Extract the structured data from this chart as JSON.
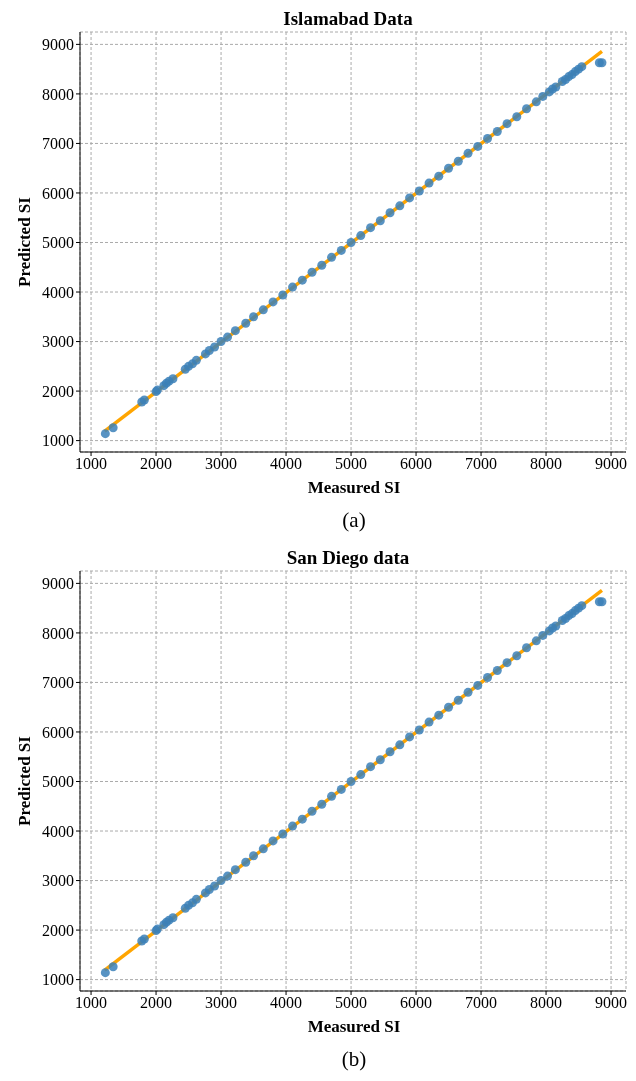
{
  "chart_data": [
    {
      "type": "scatter",
      "title": "Islamabad Data",
      "xlabel": "Measured SI",
      "ylabel": "Predicted SI",
      "annotations": [
        "(a)"
      ],
      "xlim": [
        830,
        9230
      ],
      "ylim": [
        770,
        9250
      ],
      "xticks": [
        1000,
        2000,
        3000,
        4000,
        5000,
        6000,
        7000,
        8000,
        9000
      ],
      "yticks": [
        1000,
        2000,
        3000,
        4000,
        5000,
        6000,
        7000,
        8000,
        9000
      ],
      "grid": true,
      "series": [
        {
          "marker": "circle",
          "color": "#3b80b9",
          "x": [
            1220,
            1340,
            1780,
            1820,
            2000,
            2020,
            2120,
            2160,
            2200,
            2260,
            2450,
            2500,
            2560,
            2620,
            2760,
            2820,
            2900,
            3000,
            3100,
            3220,
            3380,
            3500,
            3650,
            3800,
            3950,
            4100,
            4250,
            4400,
            4550,
            4700,
            4850,
            5000,
            5150,
            5300,
            5450,
            5600,
            5750,
            5900,
            6050,
            6200,
            6350,
            6500,
            6650,
            6800,
            6950,
            7100,
            7250,
            7400,
            7550,
            7700,
            7850,
            7950,
            8050,
            8100,
            8150,
            8250,
            8300,
            8350,
            8400,
            8450,
            8500,
            8550,
            8820,
            8860
          ],
          "values": [
            1140,
            1260,
            1780,
            1820,
            1990,
            2020,
            2110,
            2160,
            2200,
            2250,
            2440,
            2500,
            2550,
            2620,
            2750,
            2820,
            2890,
            3000,
            3090,
            3220,
            3370,
            3500,
            3640,
            3800,
            3940,
            4100,
            4240,
            4400,
            4540,
            4700,
            4840,
            5000,
            5140,
            5300,
            5440,
            5600,
            5740,
            5900,
            6040,
            6200,
            6340,
            6500,
            6640,
            6800,
            6940,
            7100,
            7240,
            7400,
            7540,
            7700,
            7840,
            7950,
            8040,
            8100,
            8140,
            8250,
            8290,
            8350,
            8390,
            8450,
            8500,
            8550,
            8630,
            8630
          ]
        },
        {
          "type": "line",
          "marker": "none",
          "color": "#ffa500",
          "x": [
            1210,
            8860
          ],
          "values": [
            1190,
            8860
          ]
        }
      ]
    },
    {
      "type": "scatter",
      "title": "San Diego data",
      "xlabel": "Measured SI",
      "ylabel": "Predicted SI",
      "annotations": [
        "(b)"
      ],
      "xlim": [
        830,
        9230
      ],
      "ylim": [
        770,
        9250
      ],
      "xticks": [
        1000,
        2000,
        3000,
        4000,
        5000,
        6000,
        7000,
        8000,
        9000
      ],
      "yticks": [
        1000,
        2000,
        3000,
        4000,
        5000,
        6000,
        7000,
        8000,
        9000
      ],
      "grid": true,
      "series": [
        {
          "marker": "circle",
          "color": "#3b80b9",
          "x": [
            1220,
            1340,
            1780,
            1820,
            2000,
            2020,
            2120,
            2160,
            2200,
            2260,
            2450,
            2500,
            2560,
            2620,
            2760,
            2820,
            2900,
            3000,
            3100,
            3220,
            3380,
            3500,
            3650,
            3800,
            3950,
            4100,
            4250,
            4400,
            4550,
            4700,
            4850,
            5000,
            5150,
            5300,
            5450,
            5600,
            5750,
            5900,
            6050,
            6200,
            6350,
            6500,
            6650,
            6800,
            6950,
            7100,
            7250,
            7400,
            7550,
            7700,
            7850,
            7950,
            8050,
            8100,
            8150,
            8250,
            8300,
            8350,
            8400,
            8450,
            8500,
            8550,
            8820,
            8860
          ],
          "values": [
            1140,
            1260,
            1780,
            1820,
            1990,
            2020,
            2110,
            2160,
            2200,
            2250,
            2440,
            2500,
            2550,
            2620,
            2750,
            2820,
            2890,
            3000,
            3090,
            3220,
            3370,
            3500,
            3640,
            3800,
            3940,
            4100,
            4240,
            4400,
            4540,
            4700,
            4840,
            5000,
            5140,
            5300,
            5440,
            5600,
            5740,
            5900,
            6040,
            6200,
            6340,
            6500,
            6640,
            6800,
            6940,
            7100,
            7240,
            7400,
            7540,
            7700,
            7840,
            7950,
            8040,
            8100,
            8140,
            8250,
            8290,
            8350,
            8390,
            8450,
            8500,
            8550,
            8630,
            8630
          ]
        },
        {
          "type": "line",
          "marker": "none",
          "color": "#ffa500",
          "x": [
            1210,
            8860
          ],
          "values": [
            1190,
            8860
          ]
        }
      ]
    }
  ]
}
